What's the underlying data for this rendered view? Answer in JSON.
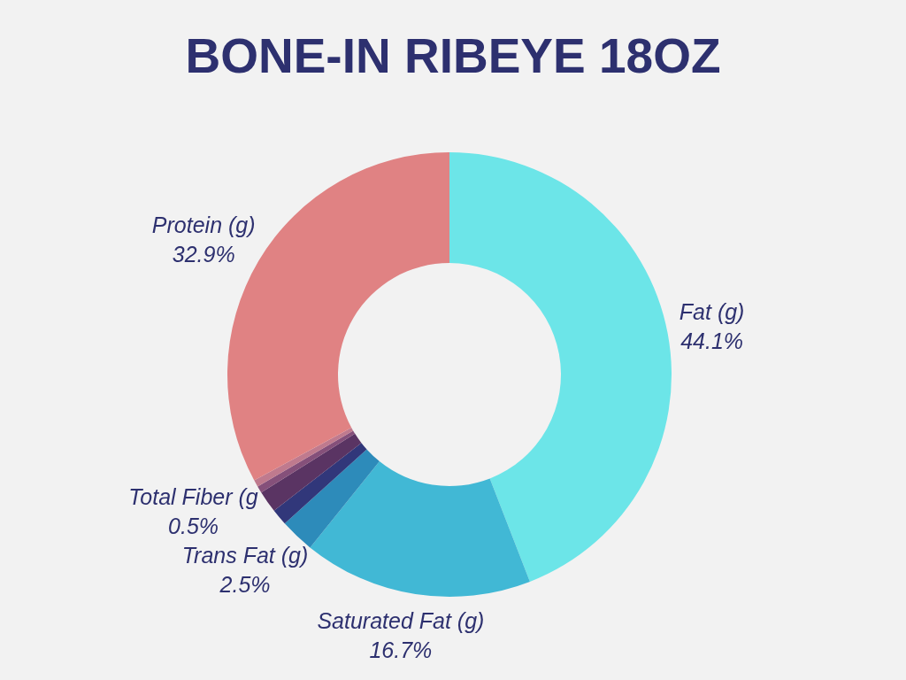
{
  "chart_data": {
    "type": "donut",
    "title": "BONE-IN RIBEYE 18OZ",
    "categories": [
      "Fat (g)",
      "Saturated Fat (g)",
      "Trans Fat (g)",
      null,
      null,
      "Total Fiber (g",
      null,
      "Protein (g)"
    ],
    "values": [
      44.1,
      16.7,
      2.5,
      1.2,
      1.6,
      0.5,
      0.5,
      32.9
    ],
    "value_labels": [
      "44.1%",
      "16.7%",
      "2.5%",
      null,
      null,
      "0.5%",
      null,
      "32.9%"
    ],
    "colors": [
      "#6ce5e8",
      "#41b8d5",
      "#2d8bba",
      "#31377a",
      "#5a3463",
      "#85507a",
      "#bf7a8e",
      "#e08283"
    ]
  }
}
